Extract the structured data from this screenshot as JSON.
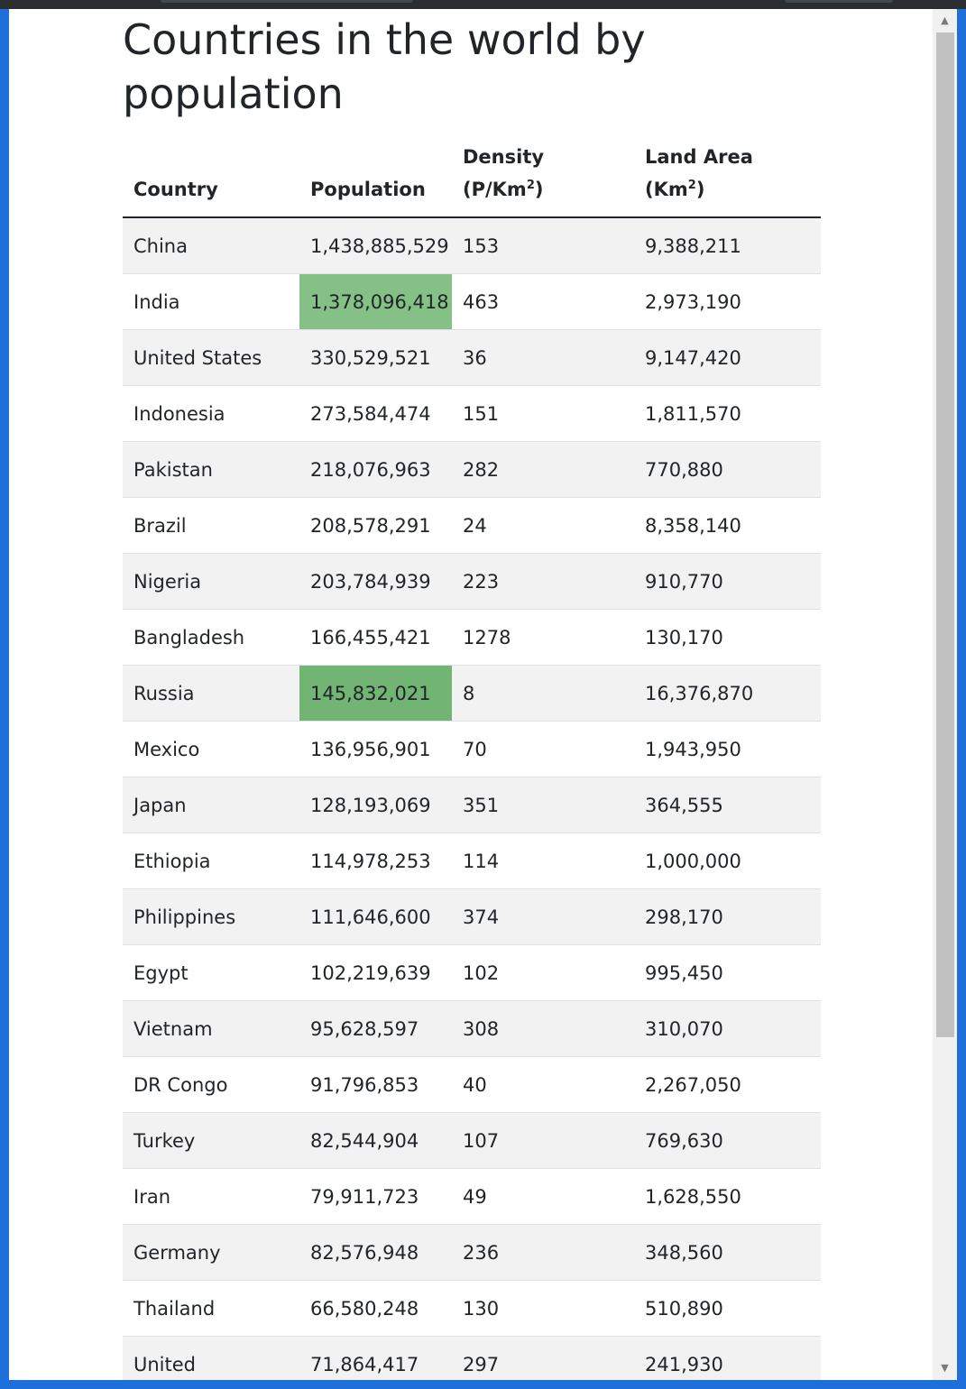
{
  "page": {
    "title": "Countries in the world by population"
  },
  "table": {
    "headers": {
      "country": "Country",
      "population": "Population",
      "density": "Density",
      "density_unit_pre": "(P/Km",
      "density_unit_sup": "2",
      "density_unit_post": ")",
      "land_area": "Land Area",
      "land_unit_pre": "(Km",
      "land_unit_sup": "2",
      "land_unit_post": ")"
    },
    "rows": [
      {
        "country": "China",
        "population": "1,438,885,529",
        "density": "153",
        "land_area": "9,388,211"
      },
      {
        "country": "India",
        "population": "1,378,096,418",
        "density": "463",
        "land_area": "2,973,190"
      },
      {
        "country": "United States",
        "population": "330,529,521",
        "density": "36",
        "land_area": "9,147,420"
      },
      {
        "country": "Indonesia",
        "population": "273,584,474",
        "density": "151",
        "land_area": "1,811,570"
      },
      {
        "country": "Pakistan",
        "population": "218,076,963",
        "density": "282",
        "land_area": "770,880"
      },
      {
        "country": "Brazil",
        "population": "208,578,291",
        "density": "24",
        "land_area": "8,358,140"
      },
      {
        "country": "Nigeria",
        "population": "203,784,939",
        "density": "223",
        "land_area": "910,770"
      },
      {
        "country": "Bangladesh",
        "population": "166,455,421",
        "density": "1278",
        "land_area": "130,170"
      },
      {
        "country": "Russia",
        "population": "145,832,021",
        "density": "8",
        "land_area": "16,376,870"
      },
      {
        "country": "Mexico",
        "population": "136,956,901",
        "density": "70",
        "land_area": "1,943,950"
      },
      {
        "country": "Japan",
        "population": "128,193,069",
        "density": "351",
        "land_area": "364,555"
      },
      {
        "country": "Ethiopia",
        "population": "114,978,253",
        "density": "114",
        "land_area": "1,000,000"
      },
      {
        "country": "Philippines",
        "population": "111,646,600",
        "density": "374",
        "land_area": "298,170"
      },
      {
        "country": "Egypt",
        "population": "102,219,639",
        "density": "102",
        "land_area": "995,450"
      },
      {
        "country": "Vietnam",
        "population": "95,628,597",
        "density": "308",
        "land_area": "310,070"
      },
      {
        "country": "DR Congo",
        "population": "91,796,853",
        "density": "40",
        "land_area": "2,267,050"
      },
      {
        "country": "Turkey",
        "population": "82,544,904",
        "density": "107",
        "land_area": "769,630"
      },
      {
        "country": "Iran",
        "population": "79,911,723",
        "density": "49",
        "land_area": "1,628,550"
      },
      {
        "country": "Germany",
        "population": "82,576,948",
        "density": "236",
        "land_area": "348,560"
      },
      {
        "country": "Thailand",
        "population": "66,580,248",
        "density": "130",
        "land_area": "510,890"
      },
      {
        "country": "United",
        "population": "71,864,417",
        "density": "297",
        "land_area": "241,930"
      }
    ],
    "highlight_colors": {
      "light": "#85c187",
      "dark": "#71b474"
    }
  },
  "scrollbar": {
    "up_icon": "triangle-up-icon",
    "down_icon": "triangle-down-icon"
  }
}
